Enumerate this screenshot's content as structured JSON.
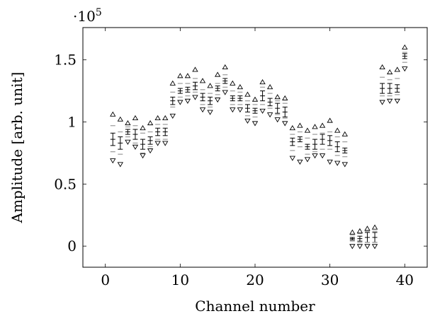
{
  "chart_data": {
    "type": "scatter",
    "xlabel": "Channel number",
    "ylabel": "Amplitude [arb. unit]",
    "scale_label_base": "·10",
    "scale_label_exp": "5",
    "xlim": [
      -3,
      43
    ],
    "ylim": [
      -17000,
      176000
    ],
    "xticks": [
      0,
      10,
      20,
      30,
      40
    ],
    "xtick_labels": [
      "0",
      "10",
      "20",
      "30",
      "40"
    ],
    "yticks": [
      0,
      50000,
      100000,
      150000
    ],
    "ytick_labels": [
      "0",
      "0.5",
      "1",
      "1.5"
    ],
    "grid": false,
    "points": [
      {
        "channel": 1,
        "mean": 86000,
        "err": 5000,
        "band_hi": 97000,
        "band_lo": 76000,
        "max": 106000,
        "min": 69000
      },
      {
        "channel": 2,
        "mean": 83000,
        "err": 5000,
        "band_hi": 92000,
        "band_lo": 74000,
        "max": 102000,
        "min": 66000
      },
      {
        "channel": 3,
        "mean": 92000,
        "err": 2000,
        "band_hi": 96000,
        "band_lo": 88000,
        "max": 99000,
        "min": 84000
      },
      {
        "channel": 4,
        "mean": 90000,
        "err": 4000,
        "band_hi": 97000,
        "band_lo": 83000,
        "max": 103000,
        "min": 80000
      },
      {
        "channel": 5,
        "mean": 82000,
        "err": 4000,
        "band_hi": 91000,
        "band_lo": 75000,
        "max": 95000,
        "min": 73000
      },
      {
        "channel": 6,
        "mean": 85000,
        "err": 3000,
        "band_hi": 92000,
        "band_lo": 80000,
        "max": 99000,
        "min": 77000
      },
      {
        "channel": 7,
        "mean": 92000,
        "err": 3000,
        "band_hi": 98000,
        "band_lo": 86000,
        "max": 103000,
        "min": 83000
      },
      {
        "channel": 8,
        "mean": 92000,
        "err": 3000,
        "band_hi": 98000,
        "band_lo": 86000,
        "max": 103000,
        "min": 83000
      },
      {
        "channel": 9,
        "mean": 117000,
        "err": 3000,
        "band_hi": 124000,
        "band_lo": 112000,
        "max": 131000,
        "min": 105000
      },
      {
        "channel": 10,
        "mean": 125000,
        "err": 2000,
        "band_hi": 131000,
        "band_lo": 120000,
        "max": 137000,
        "min": 116000
      },
      {
        "channel": 11,
        "mean": 126000,
        "err": 2000,
        "band_hi": 131000,
        "band_lo": 121000,
        "max": 137000,
        "min": 117000
      },
      {
        "channel": 12,
        "mean": 129000,
        "err": 3000,
        "band_hi": 135000,
        "band_lo": 124000,
        "max": 142000,
        "min": 120000
      },
      {
        "channel": 13,
        "mean": 120000,
        "err": 3000,
        "band_hi": 126000,
        "band_lo": 114000,
        "max": 133000,
        "min": 110000
      },
      {
        "channel": 14,
        "mean": 117000,
        "err": 3000,
        "band_hi": 123000,
        "band_lo": 112000,
        "max": 129000,
        "min": 108000
      },
      {
        "channel": 15,
        "mean": 127000,
        "err": 2000,
        "band_hi": 131000,
        "band_lo": 122000,
        "max": 138000,
        "min": 118000
      },
      {
        "channel": 16,
        "mean": 133000,
        "err": 2000,
        "band_hi": 138000,
        "band_lo": 128000,
        "max": 144000,
        "min": 124000
      },
      {
        "channel": 17,
        "mean": 119000,
        "err": 2000,
        "band_hi": 125000,
        "band_lo": 114000,
        "max": 131000,
        "min": 110000
      },
      {
        "channel": 18,
        "mean": 119000,
        "err": 2000,
        "band_hi": 124000,
        "band_lo": 114000,
        "max": 128000,
        "min": 110000
      },
      {
        "channel": 19,
        "mean": 111000,
        "err": 3000,
        "band_hi": 117000,
        "band_lo": 105000,
        "max": 122000,
        "min": 101000
      },
      {
        "channel": 20,
        "mean": 109000,
        "err": 2000,
        "band_hi": 114000,
        "band_lo": 104000,
        "max": 118000,
        "min": 99000
      },
      {
        "channel": 21,
        "mean": 121000,
        "err": 4000,
        "band_hi": 128000,
        "band_lo": 114000,
        "max": 132000,
        "min": 109000
      },
      {
        "channel": 22,
        "mean": 116000,
        "err": 3000,
        "band_hi": 123000,
        "band_lo": 111000,
        "max": 128000,
        "min": 106000
      },
      {
        "channel": 23,
        "mean": 111000,
        "err": 4000,
        "band_hi": 117000,
        "band_lo": 106000,
        "max": 120000,
        "min": 102000
      },
      {
        "channel": 24,
        "mean": 108000,
        "err": 4000,
        "band_hi": 115000,
        "band_lo": 103000,
        "max": 119000,
        "min": 99000
      },
      {
        "channel": 25,
        "mean": 84000,
        "err": 3000,
        "band_hi": 90000,
        "band_lo": 77000,
        "max": 95000,
        "min": 71000
      },
      {
        "channel": 26,
        "mean": 86000,
        "err": 2000,
        "band_hi": 92000,
        "band_lo": 80000,
        "max": 97000,
        "min": 68000
      },
      {
        "channel": 27,
        "mean": 80000,
        "err": 2000,
        "band_hi": 87000,
        "band_lo": 74000,
        "max": 93000,
        "min": 70000
      },
      {
        "channel": 28,
        "mean": 82000,
        "err": 4000,
        "band_hi": 90000,
        "band_lo": 76000,
        "max": 96000,
        "min": 73000
      },
      {
        "channel": 29,
        "mean": 86000,
        "err": 4000,
        "band_hi": 91000,
        "band_lo": 78000,
        "max": 97000,
        "min": 73000
      },
      {
        "channel": 30,
        "mean": 85000,
        "err": 4000,
        "band_hi": 92000,
        "band_lo": 78000,
        "max": 101000,
        "min": 68000
      },
      {
        "channel": 31,
        "mean": 80000,
        "err": 4000,
        "band_hi": 88000,
        "band_lo": 73000,
        "max": 93000,
        "min": 67000
      },
      {
        "channel": 32,
        "mean": 77000,
        "err": 2000,
        "band_hi": 84000,
        "band_lo": 72000,
        "max": 90000,
        "min": 66000
      },
      {
        "channel": 33,
        "mean": 6000,
        "err": 1000,
        "band_hi": 9000,
        "band_lo": 4000,
        "max": 11000,
        "min": 0
      },
      {
        "channel": 34,
        "mean": 6000,
        "err": 2000,
        "band_hi": 10000,
        "band_lo": 3000,
        "max": 12000,
        "min": 0
      },
      {
        "channel": 35,
        "mean": 7000,
        "err": 4000,
        "band_hi": 12000,
        "band_lo": 3000,
        "max": 14000,
        "min": 0
      },
      {
        "channel": 36,
        "mean": 7000,
        "err": 4000,
        "band_hi": 12000,
        "band_lo": 3000,
        "max": 15000,
        "min": 0
      },
      {
        "channel": 37,
        "mean": 127000,
        "err": 4000,
        "band_hi": 136000,
        "band_lo": 121000,
        "max": 144000,
        "min": 116000
      },
      {
        "channel": 38,
        "mean": 127000,
        "err": 4000,
        "band_hi": 134000,
        "band_lo": 121000,
        "max": 140000,
        "min": 117000
      },
      {
        "channel": 39,
        "mean": 127000,
        "err": 3000,
        "band_hi": 135000,
        "band_lo": 122000,
        "max": 142000,
        "min": 117000
      },
      {
        "channel": 40,
        "mean": 153000,
        "err": 2000,
        "band_hi": 156000,
        "band_lo": 148000,
        "max": 160000,
        "min": 143000
      }
    ]
  }
}
